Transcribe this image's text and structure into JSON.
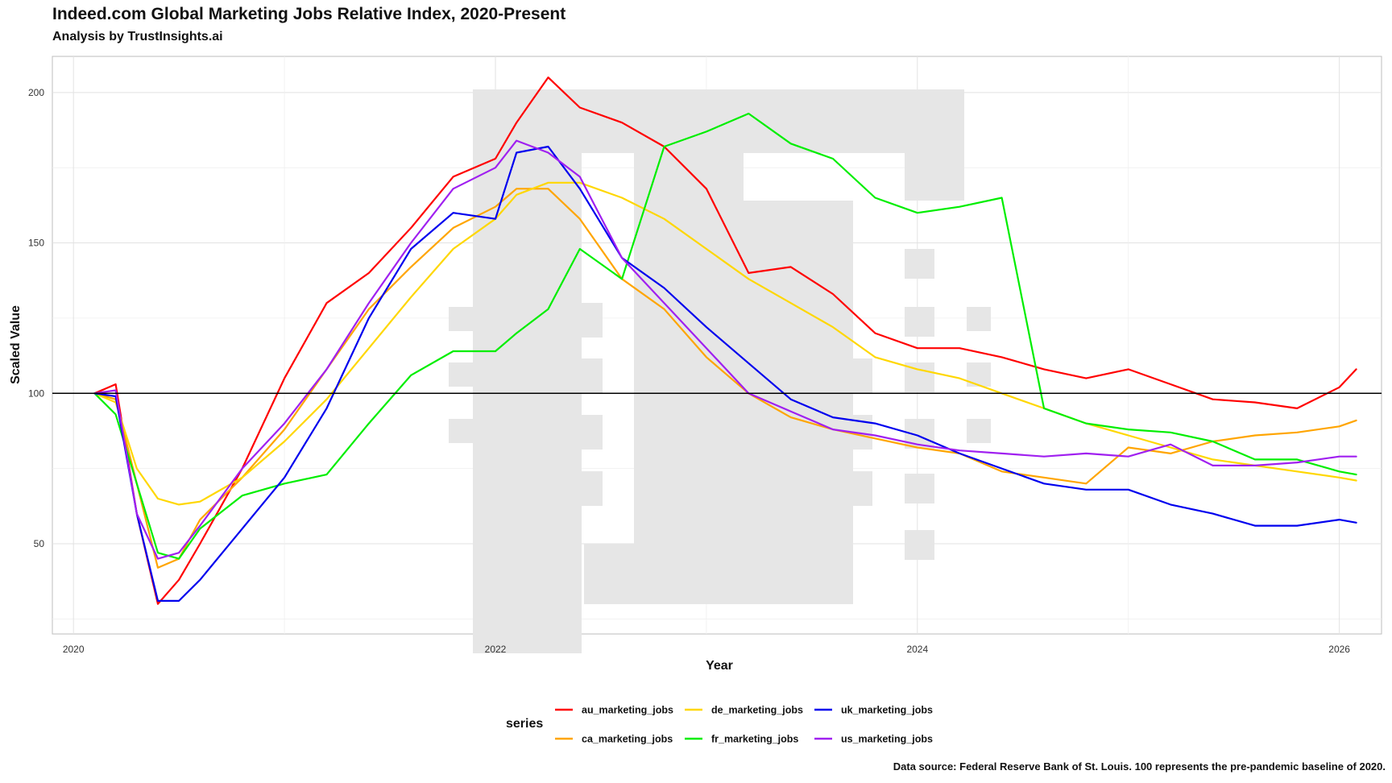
{
  "header": {
    "title": "Indeed.com Global Marketing Jobs Relative Index, 2020-Present",
    "subtitle": "Analysis by TrustInsights.ai"
  },
  "caption": "Data source: Federal Reserve Bank of St. Louis. 100 represents the pre-pandemic baseline of 2020.",
  "chart_data": {
    "type": "line",
    "title": "Indeed.com Global Marketing Jobs Relative Index, 2020-Present",
    "subtitle": "Analysis by TrustInsights.ai",
    "xlabel": "Year",
    "ylabel": "Scaled Value",
    "xlim": [
      2019.9,
      2026.2
    ],
    "ylim": [
      20,
      212
    ],
    "xticks": [
      2020,
      2022,
      2024,
      2026
    ],
    "yticks": [
      50,
      100,
      150,
      200
    ],
    "grid": true,
    "reference_line": 100,
    "legend_title": "series",
    "legend_position": "bottom",
    "x": [
      2020.1,
      2020.2,
      2020.3,
      2020.4,
      2020.5,
      2020.6,
      2020.8,
      2021.0,
      2021.2,
      2021.4,
      2021.6,
      2021.8,
      2022.0,
      2022.1,
      2022.25,
      2022.4,
      2022.6,
      2022.8,
      2023.0,
      2023.2,
      2023.4,
      2023.6,
      2023.8,
      2024.0,
      2024.2,
      2024.4,
      2024.6,
      2024.8,
      2025.0,
      2025.2,
      2025.4,
      2025.6,
      2025.8,
      2026.0,
      2026.08
    ],
    "series": [
      {
        "name": "au_marketing_jobs",
        "color": "#ff0000",
        "values": [
          100,
          103,
          60,
          30,
          38,
          50,
          75,
          105,
          130,
          140,
          155,
          172,
          178,
          190,
          205,
          195,
          190,
          182,
          168,
          140,
          142,
          133,
          120,
          115,
          115,
          112,
          108,
          105,
          108,
          103,
          98,
          97,
          95,
          102,
          108
        ]
      },
      {
        "name": "ca_marketing_jobs",
        "color": "#ffa500",
        "values": [
          100,
          98,
          70,
          42,
          45,
          58,
          72,
          88,
          108,
          128,
          142,
          155,
          162,
          168,
          168,
          158,
          138,
          128,
          112,
          100,
          92,
          88,
          85,
          82,
          80,
          74,
          72,
          70,
          82,
          80,
          84,
          86,
          87,
          89,
          91
        ]
      },
      {
        "name": "de_marketing_jobs",
        "color": "#ffd700",
        "values": [
          100,
          97,
          75,
          65,
          63,
          64,
          72,
          84,
          98,
          115,
          132,
          148,
          158,
          166,
          170,
          170,
          165,
          158,
          148,
          138,
          130,
          122,
          112,
          108,
          105,
          100,
          95,
          90,
          86,
          82,
          78,
          76,
          74,
          72,
          71
        ]
      },
      {
        "name": "fr_marketing_jobs",
        "color": "#00ee00",
        "values": [
          100,
          93,
          70,
          47,
          45,
          55,
          66,
          70,
          73,
          90,
          106,
          114,
          114,
          120,
          128,
          148,
          138,
          182,
          187,
          193,
          183,
          178,
          165,
          160,
          162,
          165,
          95,
          90,
          88,
          87,
          84,
          78,
          78,
          74,
          73
        ]
      },
      {
        "name": "uk_marketing_jobs",
        "color": "#0000ee",
        "values": [
          100,
          99,
          60,
          31,
          31,
          38,
          55,
          72,
          95,
          125,
          148,
          160,
          158,
          180,
          182,
          168,
          145,
          135,
          122,
          110,
          98,
          92,
          90,
          86,
          80,
          75,
          70,
          68,
          68,
          63,
          60,
          56,
          56,
          58,
          57
        ]
      },
      {
        "name": "us_marketing_jobs",
        "color": "#a020f0",
        "values": [
          100,
          101,
          60,
          45,
          47,
          56,
          75,
          90,
          108,
          130,
          150,
          168,
          175,
          184,
          180,
          172,
          145,
          130,
          115,
          100,
          94,
          88,
          86,
          83,
          81,
          80,
          79,
          80,
          79,
          83,
          76,
          76,
          77,
          79,
          79
        ]
      }
    ]
  }
}
